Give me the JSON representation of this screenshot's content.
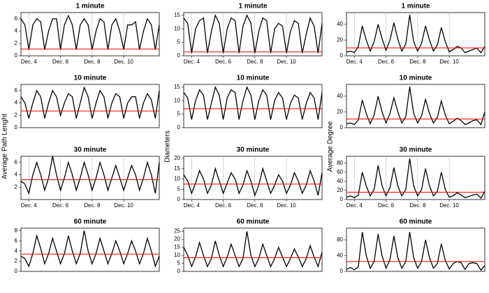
{
  "y_axis_labels": [
    "Average Path Lenght",
    "Diameters",
    "Average Degree"
  ],
  "chart_data": [
    {
      "type": "line",
      "title": "1 minute",
      "grid": true,
      "xlim": [
        3.5,
        12.25
      ],
      "xticks": [
        {
          "value": 4,
          "label": "Dec. 4"
        },
        {
          "value": 6,
          "label": "Dec. 6"
        },
        {
          "value": 8,
          "label": "Dec. 8"
        },
        {
          "value": 10,
          "label": "Dec. 10"
        }
      ],
      "ylim": [
        0,
        7
      ],
      "yticks": [
        0,
        2,
        4,
        6
      ],
      "reference_line": {
        "value": 1.1,
        "color": "#ff0000"
      },
      "color": "#000000",
      "x": [
        3.5,
        3.75,
        4,
        4.25,
        4.5,
        4.75,
        5,
        5.25,
        5.5,
        5.75,
        6,
        6.25,
        6.5,
        6.75,
        7,
        7.25,
        7.5,
        7.75,
        8,
        8.25,
        8.5,
        8.75,
        9,
        9.25,
        9.5,
        9.75,
        10,
        10.25,
        10.5,
        10.75,
        11,
        11.25,
        11.5,
        11.75,
        12,
        12.25
      ],
      "values": [
        6,
        5,
        1,
        5,
        6,
        5.5,
        1,
        4,
        6,
        6,
        1,
        5,
        6.5,
        5,
        1,
        5,
        6,
        5,
        1,
        4,
        6,
        5.5,
        1,
        5,
        6,
        4,
        1,
        5,
        5,
        5.5,
        1,
        4,
        6,
        5,
        1,
        5
      ]
    },
    {
      "type": "line",
      "title": "1 minute",
      "grid": true,
      "xlim": [
        3.5,
        12.25
      ],
      "xticks": [
        {
          "value": 4,
          "label": "Dec. 4"
        },
        {
          "value": 6,
          "label": "Dec. 6"
        },
        {
          "value": 8,
          "label": "Dec. 8"
        },
        {
          "value": 10,
          "label": "Dec. 10"
        }
      ],
      "ylim": [
        0,
        16
      ],
      "yticks": [
        0,
        5,
        10,
        15
      ],
      "reference_line": {
        "value": 1.5,
        "color": "#ff0000"
      },
      "color": "#000000",
      "x": [
        3.5,
        3.75,
        4,
        4.25,
        4.5,
        4.75,
        5,
        5.25,
        5.5,
        5.75,
        6,
        6.25,
        6.5,
        6.75,
        7,
        7.25,
        7.5,
        7.75,
        8,
        8.25,
        8.5,
        8.75,
        9,
        9.25,
        9.5,
        9.75,
        10,
        10.25,
        10.5,
        10.75,
        11,
        11.25,
        11.5,
        11.75,
        12,
        12.25
      ],
      "values": [
        14,
        12,
        1,
        10,
        13,
        14,
        1,
        9,
        15,
        12,
        1,
        10,
        14,
        13,
        1,
        11,
        15,
        12,
        1,
        9,
        14,
        13,
        1,
        10,
        12,
        11,
        1,
        9,
        13,
        12,
        1,
        8,
        14,
        11,
        1,
        12
      ]
    },
    {
      "type": "line",
      "title": "1 minute",
      "grid": true,
      "xlim": [
        3.5,
        12.25
      ],
      "xticks": [
        {
          "value": 4,
          "label": "Dec. 4"
        },
        {
          "value": 6,
          "label": "Dec. 6"
        },
        {
          "value": 8,
          "label": "Dec. 8"
        },
        {
          "value": 10,
          "label": "Dec. 10"
        }
      ],
      "ylim": [
        0,
        55
      ],
      "yticks": [
        0,
        20,
        40
      ],
      "reference_line": {
        "value": 10,
        "color": "#ff0000"
      },
      "color": "#000000",
      "x": [
        3.5,
        3.75,
        4,
        4.25,
        4.5,
        4.75,
        5,
        5.25,
        5.5,
        5.75,
        6,
        6.25,
        6.5,
        6.75,
        7,
        7.25,
        7.5,
        7.75,
        8,
        8.25,
        8.5,
        8.75,
        9,
        9.25,
        9.5,
        9.75,
        10,
        10.25,
        10.5,
        10.75,
        11,
        11.25,
        11.5,
        11.75,
        12,
        12.25
      ],
      "values": [
        5,
        6,
        4,
        12,
        38,
        20,
        6,
        18,
        40,
        22,
        7,
        20,
        42,
        21,
        6,
        15,
        52,
        18,
        6,
        16,
        38,
        20,
        6,
        14,
        36,
        18,
        5,
        8,
        12,
        10,
        4,
        6,
        8,
        10,
        4,
        12
      ]
    },
    {
      "type": "line",
      "title": "10 minute",
      "grid": true,
      "xlim": [
        3.5,
        12.25
      ],
      "ylim": [
        0,
        7
      ],
      "yticks": [
        0,
        2,
        4,
        6
      ],
      "reference_line": {
        "value": 2.7,
        "color": "#ff0000"
      },
      "color": "#000000",
      "x": [
        3.5,
        3.75,
        4,
        4.25,
        4.5,
        4.75,
        5,
        5.25,
        5.5,
        5.75,
        6,
        6.25,
        6.5,
        6.75,
        7,
        7.25,
        7.5,
        7.75,
        8,
        8.25,
        8.5,
        8.75,
        9,
        9.25,
        9.5,
        9.75,
        10,
        10.25,
        10.5,
        10.75,
        11,
        11.25,
        11.5,
        11.75,
        12,
        12.25
      ],
      "values": [
        5,
        4,
        1.5,
        4,
        6,
        5,
        1.5,
        4,
        6,
        5,
        2,
        4,
        5.5,
        5,
        1.5,
        4,
        6.5,
        5,
        1.5,
        4,
        6,
        5,
        1.5,
        4,
        5.5,
        5,
        1.5,
        4,
        5,
        5,
        1.5,
        4,
        5.5,
        4.5,
        1.5,
        6
      ]
    },
    {
      "type": "line",
      "title": "10 minute",
      "grid": true,
      "xlim": [
        3.5,
        12.25
      ],
      "ylim": [
        0,
        16
      ],
      "yticks": [
        0,
        5,
        10,
        15
      ],
      "reference_line": {
        "value": 7,
        "color": "#ff0000"
      },
      "color": "#000000",
      "x": [
        3.5,
        3.75,
        4,
        4.25,
        4.5,
        4.75,
        5,
        5.25,
        5.5,
        5.75,
        6,
        6.25,
        6.5,
        6.75,
        7,
        7.25,
        7.5,
        7.75,
        8,
        8.25,
        8.5,
        8.75,
        9,
        9.25,
        9.5,
        9.75,
        10,
        10.25,
        10.5,
        10.75,
        11,
        11.25,
        11.5,
        11.75,
        12,
        12.25
      ],
      "values": [
        13,
        11,
        3,
        10,
        14,
        12,
        3,
        9,
        15,
        12,
        3,
        11,
        14,
        13,
        3,
        10,
        15,
        12,
        3,
        10,
        14,
        12,
        3,
        10,
        13,
        11,
        3,
        9,
        12,
        11,
        3,
        9,
        13,
        11,
        3,
        13
      ]
    },
    {
      "type": "line",
      "title": "10 minute",
      "grid": true,
      "xlim": [
        3.5,
        12.25
      ],
      "ylim": [
        0,
        55
      ],
      "yticks": [
        0,
        20,
        40
      ],
      "reference_line": {
        "value": 11,
        "color": "#ff0000"
      },
      "color": "#000000",
      "x": [
        3.5,
        3.75,
        4,
        4.25,
        4.5,
        4.75,
        5,
        5.25,
        5.5,
        5.75,
        6,
        6.25,
        6.5,
        6.75,
        7,
        7.25,
        7.5,
        7.75,
        8,
        8.25,
        8.5,
        8.75,
        9,
        9.25,
        9.5,
        9.75,
        10,
        10.25,
        10.5,
        10.75,
        11,
        11.25,
        11.5,
        11.75,
        12,
        12.25
      ],
      "values": [
        5,
        6,
        4,
        10,
        35,
        18,
        5,
        16,
        40,
        20,
        6,
        18,
        38,
        20,
        6,
        14,
        52,
        18,
        6,
        15,
        36,
        18,
        6,
        13,
        34,
        16,
        5,
        8,
        12,
        9,
        4,
        6,
        9,
        10,
        4,
        20
      ]
    },
    {
      "type": "line",
      "title": "30 minute",
      "grid": true,
      "xlim": [
        3.5,
        12.25
      ],
      "xticks": [
        {
          "value": 4,
          "label": "Dec. 4"
        },
        {
          "value": 6,
          "label": "Dec. 6"
        },
        {
          "value": 8,
          "label": "Dec. 8"
        },
        {
          "value": 10,
          "label": "Dec. 10"
        }
      ],
      "ylim": [
        0,
        7
      ],
      "yticks": [
        2,
        4,
        6
      ],
      "reference_line": {
        "value": 3.2,
        "color": "#ff0000"
      },
      "color": "#000000",
      "x": [
        3.5,
        3.75,
        4,
        4.25,
        4.5,
        4.75,
        5,
        5.25,
        5.5,
        5.75,
        6,
        6.25,
        6.5,
        6.75,
        7,
        7.25,
        7.5,
        7.75,
        8,
        8.25,
        8.5,
        8.75,
        9,
        9.25,
        9.5,
        9.75,
        10,
        10.25,
        10.5,
        10.75,
        11,
        11.25,
        11.5,
        11.75,
        12,
        12.25
      ],
      "values": [
        3,
        2.5,
        1,
        4,
        6,
        4,
        1.5,
        3.5,
        7,
        4,
        1.5,
        3.5,
        6,
        4,
        1.5,
        3.5,
        6,
        4,
        1.5,
        3.5,
        6,
        4,
        1.5,
        3.5,
        5.5,
        3.5,
        1.5,
        3.5,
        5.5,
        4,
        1.5,
        3.5,
        6,
        4,
        1,
        6
      ]
    },
    {
      "type": "line",
      "title": "30 minute",
      "grid": true,
      "xlim": [
        3.5,
        12.25
      ],
      "xticks": [
        {
          "value": 4,
          "label": "Dec. 4"
        },
        {
          "value": 6,
          "label": "Dec. 6"
        },
        {
          "value": 8,
          "label": "Dec. 8"
        },
        {
          "value": 10,
          "label": "Dec. 10"
        }
      ],
      "ylim": [
        0,
        21
      ],
      "yticks": [
        0,
        5,
        10,
        15,
        20
      ],
      "reference_line": {
        "value": 7.5,
        "color": "#ff0000"
      },
      "color": "#000000",
      "x": [
        3.5,
        3.75,
        4,
        4.25,
        4.5,
        4.75,
        5,
        5.25,
        5.5,
        5.75,
        6,
        6.25,
        6.5,
        6.75,
        7,
        7.25,
        7.5,
        7.75,
        8,
        8.25,
        8.5,
        8.75,
        9,
        9.25,
        9.5,
        9.75,
        10,
        10.25,
        10.5,
        10.75,
        11,
        11.25,
        11.5,
        11.75,
        12,
        12.25
      ],
      "values": [
        12,
        9,
        3,
        8,
        14,
        10,
        3,
        7,
        15,
        9,
        3,
        8,
        13,
        10,
        3,
        7,
        14,
        9,
        2,
        7,
        15,
        9,
        3,
        7,
        12,
        9,
        3,
        7,
        13,
        9,
        3,
        7,
        14,
        9,
        2,
        13
      ]
    },
    {
      "type": "line",
      "title": "30 minute",
      "grid": true,
      "xlim": [
        3.5,
        12.25
      ],
      "xticks": [
        {
          "value": 4,
          "label": "Dec. 4"
        },
        {
          "value": 6,
          "label": "Dec. 6"
        },
        {
          "value": 8,
          "label": "Dec. 8"
        },
        {
          "value": 10,
          "label": "Dec. 10"
        }
      ],
      "ylim": [
        0,
        95
      ],
      "yticks": [
        0,
        20,
        40,
        60,
        80
      ],
      "reference_line": {
        "value": 16,
        "color": "#ff0000"
      },
      "color": "#000000",
      "x": [
        3.5,
        3.75,
        4,
        4.25,
        4.5,
        4.75,
        5,
        5.25,
        5.5,
        5.75,
        6,
        6.25,
        6.5,
        6.75,
        7,
        7.25,
        7.5,
        7.75,
        8,
        8.25,
        8.5,
        8.75,
        9,
        9.25,
        9.5,
        9.75,
        10,
        10.25,
        10.5,
        10.75,
        11,
        11.25,
        11.5,
        11.75,
        12,
        12.25
      ],
      "values": [
        5,
        8,
        4,
        10,
        60,
        30,
        8,
        22,
        75,
        30,
        8,
        26,
        70,
        30,
        8,
        22,
        90,
        30,
        8,
        22,
        68,
        30,
        8,
        18,
        60,
        22,
        5,
        8,
        15,
        10,
        4,
        7,
        10,
        12,
        3,
        18
      ]
    },
    {
      "type": "line",
      "title": "60 minute",
      "grid": true,
      "xlim": [
        3.5,
        12.25
      ],
      "ylim": [
        0,
        8.5
      ],
      "yticks": [
        0,
        2,
        4,
        6,
        8
      ],
      "reference_line": {
        "value": 3.4,
        "color": "#ff0000"
      },
      "color": "#000000",
      "x": [
        3.5,
        3.75,
        4,
        4.25,
        4.5,
        4.75,
        5,
        5.25,
        5.5,
        5.75,
        6,
        6.25,
        6.5,
        6.75,
        7,
        7.25,
        7.5,
        7.75,
        8,
        8.25,
        8.5,
        8.75,
        9,
        9.25,
        9.5,
        9.75,
        10,
        10.25,
        10.5,
        10.75,
        11,
        11.25,
        11.5,
        11.75,
        12,
        12.25
      ],
      "values": [
        3,
        2.5,
        1,
        3.5,
        7,
        4.5,
        1.5,
        3.5,
        6.5,
        4,
        1.5,
        3.5,
        7,
        4,
        1.5,
        3.5,
        8,
        4,
        1.5,
        3.5,
        6.5,
        4,
        1.5,
        3.5,
        6,
        4,
        1.5,
        3.5,
        6,
        4,
        1.5,
        3.5,
        6.5,
        4,
        1,
        3
      ]
    },
    {
      "type": "line",
      "title": "60 minute",
      "grid": true,
      "xlim": [
        3.5,
        12.25
      ],
      "ylim": [
        0,
        27
      ],
      "yticks": [
        0,
        5,
        10,
        15,
        20,
        25
      ],
      "reference_line": {
        "value": 8.5,
        "color": "#ff0000"
      },
      "color": "#000000",
      "x": [
        3.5,
        3.75,
        4,
        4.25,
        4.5,
        4.75,
        5,
        5.25,
        5.5,
        5.75,
        6,
        6.25,
        6.5,
        6.75,
        7,
        7.25,
        7.5,
        7.75,
        8,
        8.25,
        8.5,
        8.75,
        9,
        9.25,
        9.5,
        9.75,
        10,
        10.25,
        10.5,
        10.75,
        11,
        11.25,
        11.5,
        11.75,
        12,
        12.25
      ],
      "values": [
        15,
        10,
        3,
        9,
        18,
        10,
        3,
        8,
        19,
        10,
        3,
        9,
        17,
        10,
        3,
        8,
        25,
        10,
        3,
        8,
        17,
        10,
        3,
        8,
        15,
        9,
        3,
        8,
        14,
        9,
        3,
        8,
        16,
        9,
        3,
        12
      ]
    },
    {
      "type": "line",
      "title": "60 minute",
      "grid": true,
      "xlim": [
        3.5,
        12.25
      ],
      "ylim": [
        0,
        110
      ],
      "yticks": [
        0,
        40,
        80
      ],
      "reference_line": {
        "value": 25,
        "color": "#ff0000"
      },
      "color": "#000000",
      "x": [
        3.5,
        3.75,
        4,
        4.25,
        4.5,
        4.75,
        5,
        5.25,
        5.5,
        5.75,
        6,
        6.25,
        6.5,
        6.75,
        7,
        7.25,
        7.5,
        7.75,
        8,
        8.25,
        8.5,
        8.75,
        9,
        9.25,
        9.5,
        9.75,
        10,
        10.25,
        10.5,
        10.75,
        11,
        11.25,
        11.5,
        11.75,
        12,
        12.25
      ],
      "values": [
        5,
        10,
        4,
        12,
        100,
        40,
        8,
        25,
        95,
        40,
        8,
        30,
        90,
        35,
        8,
        25,
        100,
        35,
        8,
        25,
        80,
        35,
        8,
        20,
        70,
        28,
        6,
        20,
        25,
        22,
        5,
        20,
        22,
        20,
        3,
        15
      ]
    }
  ]
}
